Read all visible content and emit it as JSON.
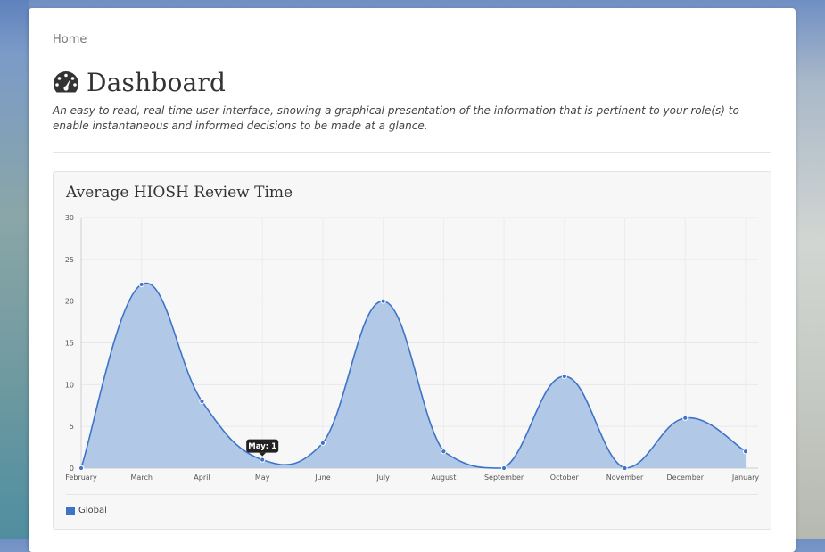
{
  "breadcrumb": {
    "home": "Home"
  },
  "header": {
    "title": "Dashboard",
    "icon": "dashboard-gauge-icon",
    "subtitle": "An easy to read, real-time user interface, showing a graphical presentation of the information that is pertinent to your role(s) to enable instantaneous and informed decisions to be made at a glance."
  },
  "colors": {
    "series": "#3e74c8",
    "fill": "#aec5e6",
    "tooltip": "#222222"
  },
  "chart_data": {
    "type": "area",
    "title": "Average HIOSH Review Time",
    "categories": [
      "February",
      "March",
      "April",
      "May",
      "June",
      "July",
      "August",
      "September",
      "October",
      "November",
      "December",
      "January"
    ],
    "series": [
      {
        "name": "Global",
        "values": [
          0,
          22,
          8,
          1,
          3,
          20,
          2,
          0,
          11,
          0,
          6,
          2
        ]
      }
    ],
    "ylim": [
      0,
      30
    ],
    "yticks": [
      0,
      5,
      10,
      15,
      20,
      25,
      30
    ],
    "grid": true,
    "legend": "bottom-left",
    "tooltip": {
      "text": "May: 1"
    }
  }
}
